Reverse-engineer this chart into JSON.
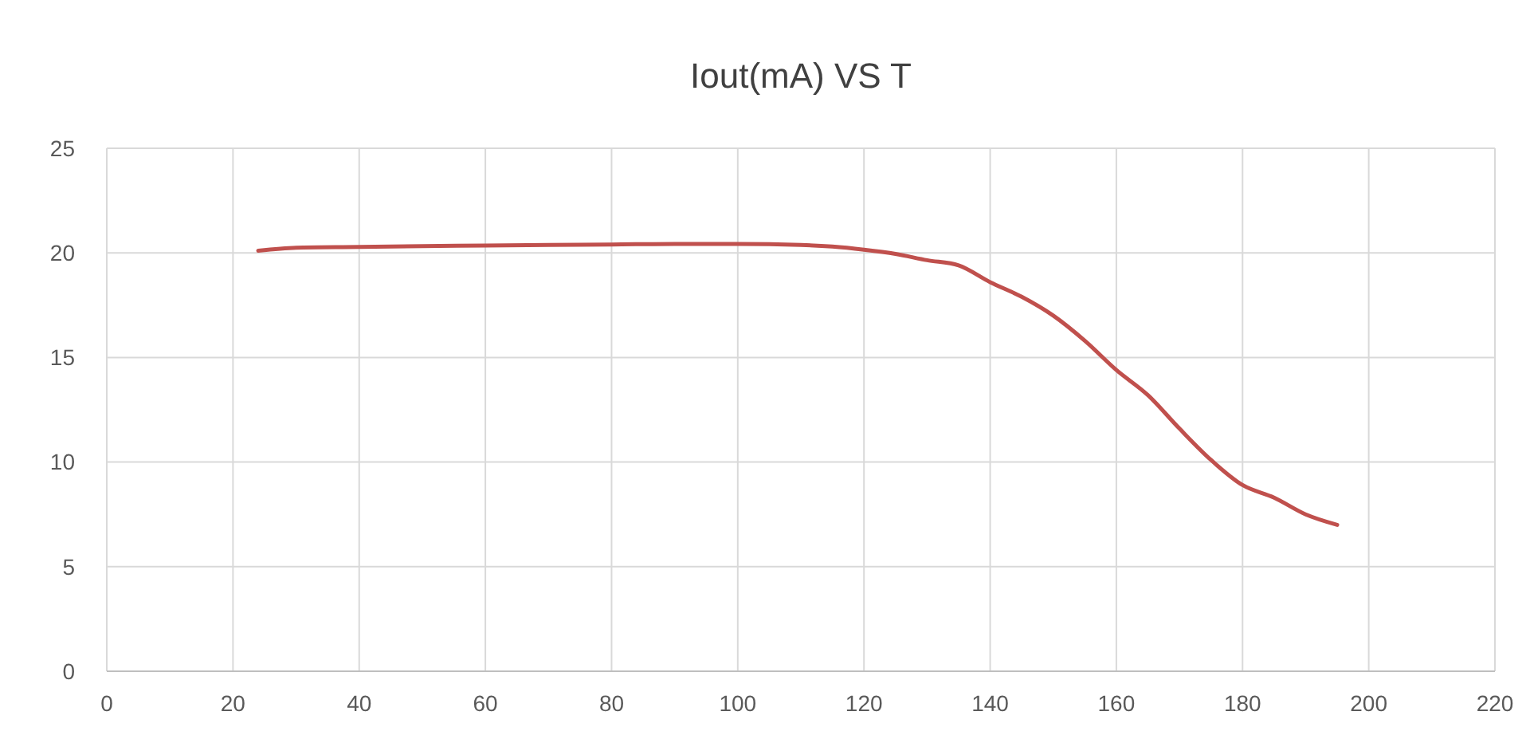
{
  "chart_data": {
    "type": "line",
    "title": "Iout(mA) VS T",
    "series": [
      {
        "color": "#c0504d",
        "x": [
          24,
          30,
          40,
          50,
          60,
          70,
          80,
          90,
          100,
          110,
          115,
          120,
          125,
          130,
          135,
          140,
          145,
          150,
          155,
          160,
          165,
          170,
          175,
          180,
          185,
          190,
          195
        ],
        "values": [
          20.1,
          20.25,
          20.28,
          20.32,
          20.35,
          20.38,
          20.4,
          20.43,
          20.43,
          20.38,
          20.3,
          20.15,
          19.95,
          19.65,
          19.4,
          18.6,
          17.9,
          17.0,
          15.8,
          14.4,
          13.2,
          11.6,
          10.1,
          8.9,
          8.3,
          7.5,
          7.0
        ]
      }
    ],
    "xlim": [
      0,
      220
    ],
    "xticks": [
      0,
      20,
      40,
      60,
      80,
      100,
      120,
      140,
      160,
      180,
      200,
      220
    ],
    "ylim": [
      0,
      25
    ],
    "yticks": [
      0,
      5,
      10,
      15,
      20,
      25
    ],
    "grid": true,
    "marker": "none",
    "line_style": "solid"
  }
}
